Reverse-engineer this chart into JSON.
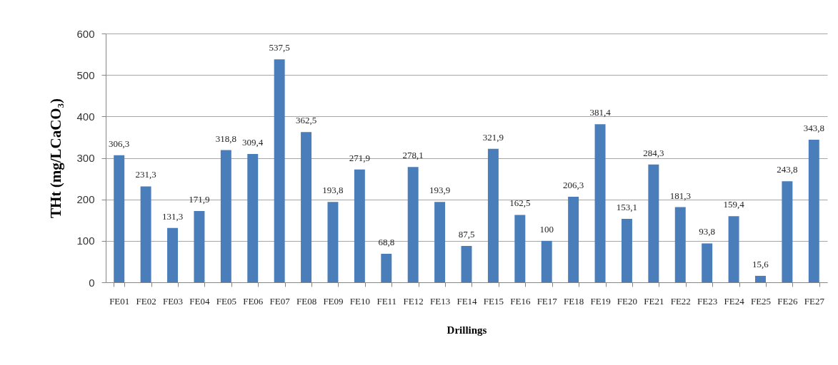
{
  "chart_data": {
    "type": "bar",
    "xlabel": "Drillings",
    "ylabel": "THt (mg/LCaCO₃)",
    "categories": [
      "FE01",
      "FE02",
      "FE03",
      "FE04",
      "FE05",
      "FE06",
      "FE07",
      "FE08",
      "FE09",
      "FE10",
      "FE11",
      "FE12",
      "FE13",
      "FE14",
      "FE15",
      "FE16",
      "FE17",
      "FE18",
      "FE19",
      "FE20",
      "FE21",
      "FE22",
      "FE23",
      "FE24",
      "FE25",
      "FE26",
      "FE27"
    ],
    "values": [
      306.3,
      231.3,
      131.3,
      171.9,
      318.8,
      309.4,
      537.5,
      362.5,
      193.8,
      271.9,
      68.8,
      278.1,
      193.9,
      87.5,
      321.9,
      162.5,
      100,
      206.3,
      381.4,
      153.1,
      284.3,
      181.3,
      93.8,
      159.4,
      15.6,
      243.8,
      343.8
    ],
    "value_labels": [
      "306,3",
      "231,3",
      "131,3",
      "171,9",
      "318,8",
      "309,4",
      "537,5",
      "362,5",
      "193,8",
      "271,9",
      "68,8",
      "278,1",
      "193,9",
      "87,5",
      "321,9",
      "162,5",
      "100",
      "206,3",
      "381,4",
      "153,1",
      "284,3",
      "181,3",
      "93,8",
      "159,4",
      "15,6",
      "243,8",
      "343,8"
    ],
    "color": "#4a7ebb",
    "ylim": [
      0,
      600
    ],
    "yticks": [
      0,
      100,
      200,
      300,
      400,
      500,
      600
    ],
    "grid": "y"
  }
}
